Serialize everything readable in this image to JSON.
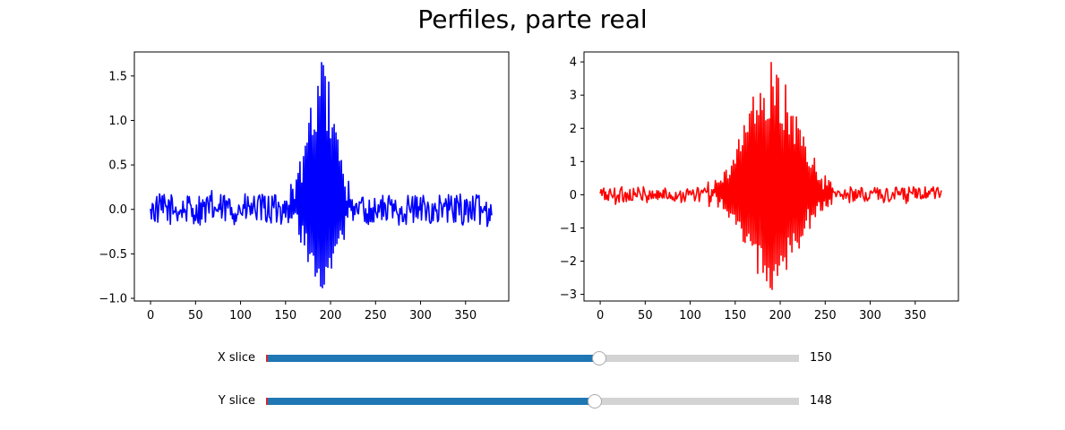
{
  "title": "Perfiles, parte real",
  "chart_data": [
    {
      "type": "line",
      "title": "",
      "xlabel": "",
      "ylabel": "",
      "xlim": [
        -18,
        398
      ],
      "ylim": [
        -1.03,
        1.77
      ],
      "xticks": [
        0,
        50,
        100,
        150,
        200,
        250,
        300,
        350
      ],
      "yticks": [
        -1.0,
        -0.5,
        0.0,
        0.5,
        1.0,
        1.5
      ],
      "ytick_labels": [
        "−1.0",
        "−0.5",
        "0.0",
        "0.5",
        "1.0",
        "1.5"
      ],
      "color": "#0000ff",
      "n_points": 380,
      "approx_shape": {
        "center": 190,
        "peak_max": 1.65,
        "peak_min": -0.88,
        "baseline_amplitude": 0.22,
        "envelope_halfwidth": 22
      }
    },
    {
      "type": "line",
      "title": "",
      "xlabel": "",
      "ylabel": "",
      "xlim": [
        -18,
        398
      ],
      "ylim": [
        -3.2,
        4.3
      ],
      "xticks": [
        0,
        50,
        100,
        150,
        200,
        250,
        300,
        350
      ],
      "yticks": [
        -3,
        -2,
        -1,
        0,
        1,
        2,
        3,
        4
      ],
      "ytick_labels": [
        "−3",
        "−2",
        "−1",
        "0",
        "1",
        "2",
        "3",
        "4"
      ],
      "color": "#ff0000",
      "n_points": 380,
      "approx_shape": {
        "center": 190,
        "peak_max": 3.98,
        "peak_min": -2.85,
        "baseline_amplitude": 0.3,
        "envelope_halfwidth": 40
      }
    }
  ],
  "sliders": [
    {
      "label": "X slice",
      "value": 150,
      "value_text": "150",
      "min": 0,
      "max": 240
    },
    {
      "label": "Y slice",
      "value": 148,
      "value_text": "148",
      "min": 0,
      "max": 240
    }
  ],
  "colors": {
    "slider_fill": "#1f77b4",
    "slider_track": "#d3d3d3",
    "slider_start_tick": "#d62728"
  }
}
